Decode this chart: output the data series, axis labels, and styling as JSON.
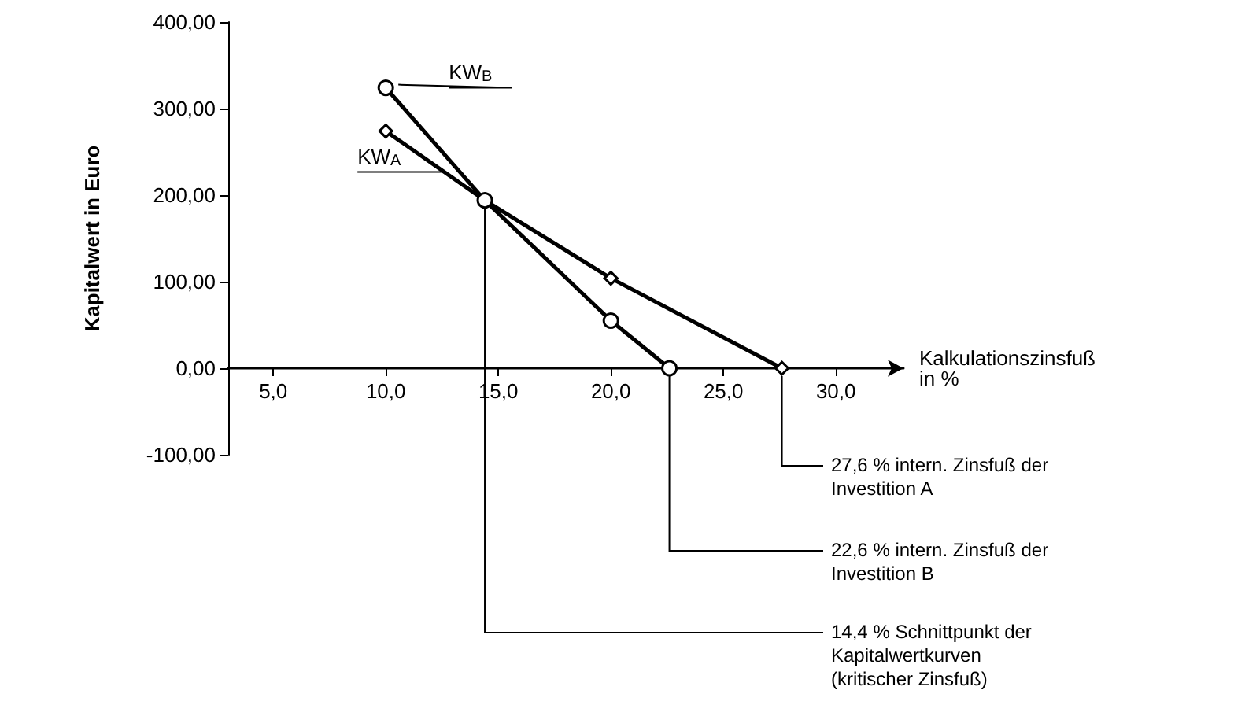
{
  "chart_data": {
    "type": "line",
    "xlabel": "Kalkulationszinsfuß\nin %",
    "ylabel": "Kapitalwert in Euro",
    "xlim": [
      3,
      33
    ],
    "xticks": [
      {
        "value": 5,
        "label": "5,0"
      },
      {
        "value": 10,
        "label": "10,0"
      },
      {
        "value": 15,
        "label": "15,0"
      },
      {
        "value": 20,
        "label": "20,0"
      },
      {
        "value": 25,
        "label": "25,0"
      },
      {
        "value": 30,
        "label": "30,0"
      }
    ],
    "ylim": [
      -100,
      400
    ],
    "yticks": [
      {
        "value": -100,
        "label": "-100,00"
      },
      {
        "value": 0,
        "label": "0,00"
      },
      {
        "value": 100,
        "label": "100,00"
      },
      {
        "value": 200,
        "label": "200,00"
      },
      {
        "value": 300,
        "label": "300,00"
      },
      {
        "value": 400,
        "label": "400,00"
      }
    ],
    "series": [
      {
        "name": "KW$_{A}$",
        "color": "#000000",
        "marker": "diamond",
        "x": [
          10,
          14.4,
          20,
          27.6
        ],
        "values": [
          274,
          194,
          104,
          0
        ]
      },
      {
        "name": "KW$_{B}$",
        "color": "#000000",
        "marker": "circle",
        "x": [
          10,
          14.4,
          20,
          22.6
        ],
        "values": [
          324,
          194,
          55,
          0
        ]
      }
    ],
    "annotations": [
      {
        "text": "27,6 % intern. Zinsfuß der\nInvestition A",
        "x": 27.6,
        "y": 0
      },
      {
        "text": "22,6 % intern. Zinsfuß der\nInvestition B",
        "x": 22.6,
        "y": 0
      },
      {
        "text": "14,4 % Schnittpunkt der\nKapitalwertkurven\n(kritischer Zinsfuß)",
        "x": 14.4,
        "y": 194
      }
    ],
    "grid": false,
    "legend": false,
    "line_style": "solid"
  }
}
